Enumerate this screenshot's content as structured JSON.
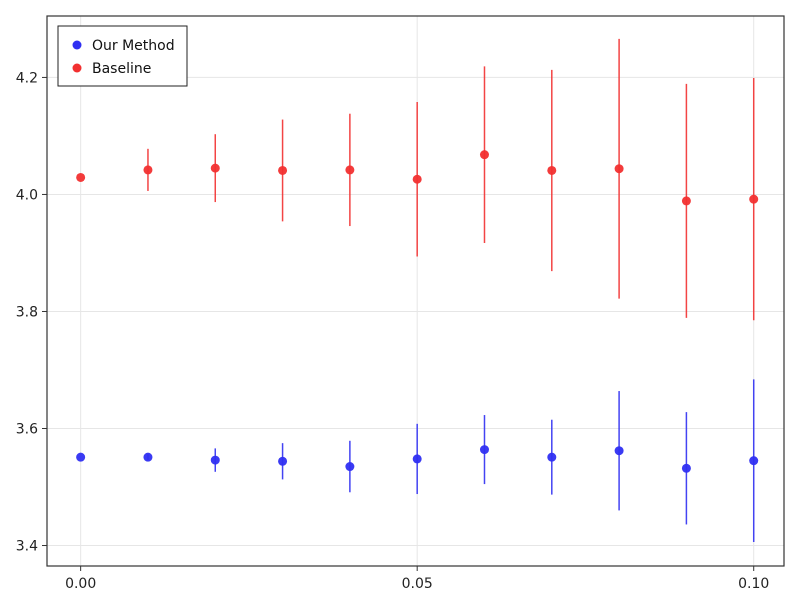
{
  "chart_data": {
    "type": "scatter",
    "title": "",
    "xlabel": "",
    "ylabel": "",
    "xlim": [
      -0.005,
      0.1045
    ],
    "ylim": [
      3.365,
      4.305
    ],
    "xticks": [
      0.0,
      0.05,
      0.1
    ],
    "xtick_labels": [
      "0.00",
      "0.05",
      "0.10"
    ],
    "yticks": [
      3.4,
      3.6,
      3.8,
      4.0,
      4.2
    ],
    "ytick_labels": [
      "3.4",
      "3.6",
      "3.8",
      "4.0",
      "4.2"
    ],
    "grid": true,
    "legend_position": "top-left",
    "series": [
      {
        "name": "Our Method",
        "color": "#2f2ff2",
        "x": [
          0.0,
          0.01,
          0.02,
          0.03,
          0.04,
          0.05,
          0.06,
          0.07,
          0.08,
          0.09,
          0.1
        ],
        "y": [
          3.551,
          3.551,
          3.546,
          3.544,
          3.535,
          3.548,
          3.564,
          3.551,
          3.562,
          3.532,
          3.545
        ],
        "err": [
          0.0,
          0.005,
          0.02,
          0.031,
          0.044,
          0.06,
          0.059,
          0.064,
          0.102,
          0.096,
          0.139
        ]
      },
      {
        "name": "Baseline",
        "color": "#f23030",
        "x": [
          0.0,
          0.01,
          0.02,
          0.03,
          0.04,
          0.05,
          0.06,
          0.07,
          0.08,
          0.09,
          0.1
        ],
        "y": [
          4.029,
          4.042,
          4.045,
          4.041,
          4.042,
          4.026,
          4.068,
          4.041,
          4.044,
          3.989,
          3.992
        ],
        "err": [
          0.0,
          0.036,
          0.058,
          0.087,
          0.096,
          0.132,
          0.151,
          0.172,
          0.222,
          0.2,
          0.207
        ]
      }
    ]
  }
}
